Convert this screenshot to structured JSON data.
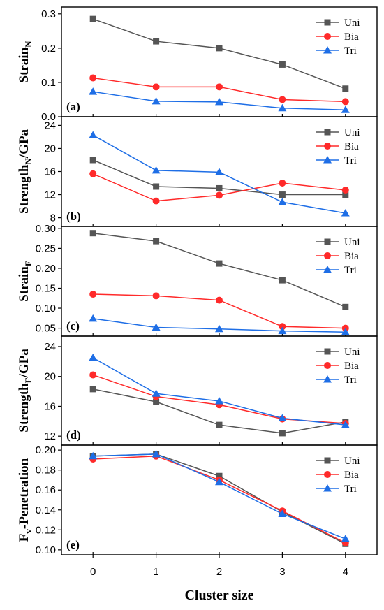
{
  "chart_data": {
    "type": "line",
    "x": [
      0,
      1,
      2,
      3,
      4
    ],
    "x_ticks": [
      "0",
      "1",
      "2",
      "3",
      "4"
    ],
    "xlabel": "Cluster size",
    "xlim": [
      -0.5,
      4.5
    ],
    "series_styles": [
      {
        "name": "Uni",
        "color": "#555555",
        "marker": "square"
      },
      {
        "name": "Bia",
        "color": "#ff2a2a",
        "marker": "circle"
      },
      {
        "name": "Tri",
        "color": "#1e6ee6",
        "marker": "triangle"
      }
    ],
    "legend_position": "top-right",
    "panels": [
      {
        "panel_label": "(a)",
        "ylabel_main": "Strain",
        "ylabel_sub": "N",
        "ylabel_tail": "",
        "ylim": [
          0,
          0.32
        ],
        "yticks": [
          0.0,
          0.1,
          0.2,
          0.3
        ],
        "ytick_labels": [
          "0.0",
          "0.1",
          "0.2",
          "0.3"
        ],
        "series": [
          {
            "name": "Uni",
            "values": [
              0.285,
              0.22,
              0.2,
              0.152,
              0.082
            ]
          },
          {
            "name": "Bia",
            "values": [
              0.113,
              0.087,
              0.087,
              0.05,
              0.044
            ]
          },
          {
            "name": "Tri",
            "values": [
              0.073,
              0.045,
              0.043,
              0.025,
              0.02
            ]
          }
        ]
      },
      {
        "panel_label": "(b)",
        "ylabel_main": "Strength",
        "ylabel_sub": "N",
        "ylabel_tail": "/GPa",
        "ylim": [
          6.5,
          25.5
        ],
        "yticks": [
          8,
          12,
          16,
          20,
          24
        ],
        "ytick_labels": [
          "8",
          "12",
          "16",
          "20",
          "24"
        ],
        "series": [
          {
            "name": "Uni",
            "values": [
              18.0,
              13.4,
              13.1,
              12.0,
              12.0
            ]
          },
          {
            "name": "Bia",
            "values": [
              15.6,
              10.9,
              11.9,
              14.0,
              12.8
            ]
          },
          {
            "name": "Tri",
            "values": [
              22.3,
              16.2,
              15.9,
              10.7,
              8.8
            ]
          }
        ]
      },
      {
        "panel_label": "(c)",
        "ylabel_main": "Strain",
        "ylabel_sub": "F",
        "ylabel_tail": "",
        "ylim": [
          0.03,
          0.305
        ],
        "yticks": [
          0.05,
          0.1,
          0.15,
          0.2,
          0.25,
          0.3
        ],
        "ytick_labels": [
          "0.05",
          "0.10",
          "0.15",
          "0.20",
          "0.25",
          "0.30"
        ],
        "series": [
          {
            "name": "Uni",
            "values": [
              0.288,
              0.268,
              0.212,
              0.17,
              0.103
            ]
          },
          {
            "name": "Bia",
            "values": [
              0.135,
              0.131,
              0.12,
              0.054,
              0.05
            ]
          },
          {
            "name": "Tri",
            "values": [
              0.074,
              0.052,
              0.048,
              0.043,
              0.04
            ]
          }
        ]
      },
      {
        "panel_label": "(d)",
        "ylabel_main": "Strength",
        "ylabel_sub": "F",
        "ylabel_tail": "/GPa",
        "ylim": [
          10.8,
          25.4
        ],
        "yticks": [
          12,
          16,
          20,
          24
        ],
        "ytick_labels": [
          "12",
          "16",
          "20",
          "24"
        ],
        "series": [
          {
            "name": "Uni",
            "values": [
              18.3,
              16.6,
              13.5,
              12.4,
              13.9
            ]
          },
          {
            "name": "Bia",
            "values": [
              20.2,
              17.3,
              16.2,
              14.3,
              13.7
            ]
          },
          {
            "name": "Tri",
            "values": [
              22.5,
              17.7,
              16.7,
              14.4,
              13.5
            ]
          }
        ]
      },
      {
        "panel_label": "(e)",
        "ylabel_main": "F",
        "ylabel_sub": "v",
        "ylabel_tail": "-Penetration",
        "ylim": [
          0.095,
          0.205
        ],
        "yticks": [
          0.1,
          0.12,
          0.14,
          0.16,
          0.18,
          0.2
        ],
        "ytick_labels": [
          "0.10",
          "0.12",
          "0.14",
          "0.16",
          "0.18",
          "0.20"
        ],
        "series": [
          {
            "name": "Uni",
            "values": [
              0.194,
              0.196,
              0.174,
              0.138,
              0.106
            ]
          },
          {
            "name": "Bia",
            "values": [
              0.191,
              0.194,
              0.17,
              0.139,
              0.107
            ]
          },
          {
            "name": "Tri",
            "values": [
              0.194,
              0.196,
              0.168,
              0.136,
              0.111
            ]
          }
        ]
      }
    ]
  }
}
